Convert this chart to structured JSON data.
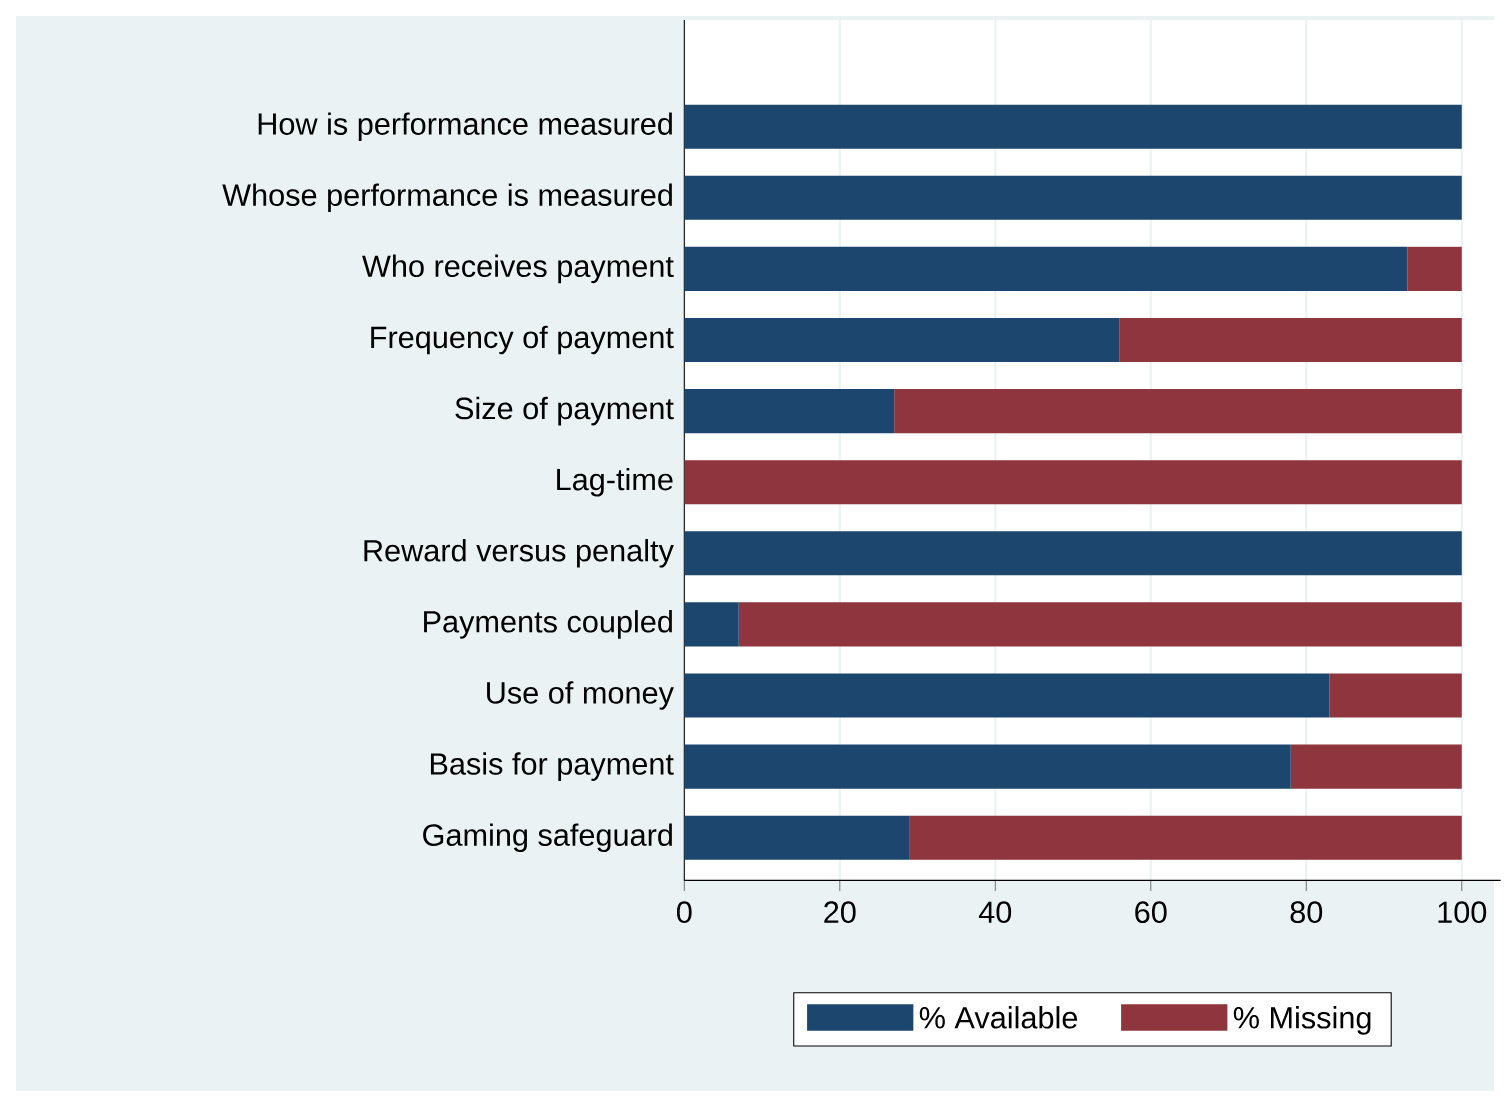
{
  "chart_data": {
    "type": "bar",
    "orientation": "horizontal",
    "stacked": true,
    "categories": [
      "How is performance measured",
      "Whose performance is measured",
      "Who receives payment",
      "Frequency of payment",
      "Size of payment",
      "Lag-time",
      "Reward versus penalty",
      "Payments coupled",
      "Use of money",
      "Basis for payment",
      "Gaming safeguard"
    ],
    "series": [
      {
        "name": "% Available",
        "color": "#1c466e",
        "values": [
          100,
          100,
          93,
          56,
          27,
          0,
          100,
          7,
          83,
          78,
          29
        ]
      },
      {
        "name": "% Missing",
        "color": "#8e353d",
        "values": [
          0,
          0,
          7,
          44,
          73,
          100,
          0,
          93,
          17,
          22,
          71
        ]
      }
    ],
    "xlim": [
      0,
      105
    ],
    "xticks": [
      0,
      20,
      40,
      60,
      80,
      100
    ],
    "grid": "x",
    "legend": "bottom"
  }
}
